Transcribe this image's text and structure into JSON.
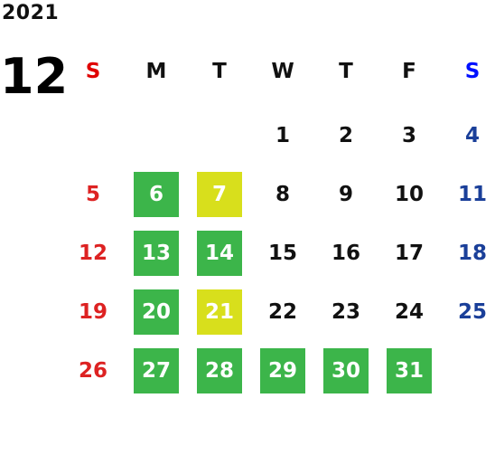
{
  "year": "2021",
  "month": "12",
  "weekdays": [
    "S",
    "M",
    "T",
    "W",
    "T",
    "F",
    "S"
  ],
  "weeks": [
    [
      {
        "day": "",
        "type": "sun"
      },
      {
        "day": "",
        "type": "normal"
      },
      {
        "day": "",
        "type": "normal"
      },
      {
        "day": "1",
        "type": "normal"
      },
      {
        "day": "2",
        "type": "normal"
      },
      {
        "day": "3",
        "type": "normal"
      },
      {
        "day": "4",
        "type": "sat"
      }
    ],
    [
      {
        "day": "5",
        "type": "sun"
      },
      {
        "day": "6",
        "type": "green"
      },
      {
        "day": "7",
        "type": "yellow"
      },
      {
        "day": "8",
        "type": "normal"
      },
      {
        "day": "9",
        "type": "normal"
      },
      {
        "day": "10",
        "type": "normal"
      },
      {
        "day": "11",
        "type": "sat"
      }
    ],
    [
      {
        "day": "12",
        "type": "sun"
      },
      {
        "day": "13",
        "type": "green"
      },
      {
        "day": "14",
        "type": "green"
      },
      {
        "day": "15",
        "type": "normal"
      },
      {
        "day": "16",
        "type": "normal"
      },
      {
        "day": "17",
        "type": "normal"
      },
      {
        "day": "18",
        "type": "sat"
      }
    ],
    [
      {
        "day": "19",
        "type": "sun"
      },
      {
        "day": "20",
        "type": "green"
      },
      {
        "day": "21",
        "type": "yellow"
      },
      {
        "day": "22",
        "type": "normal"
      },
      {
        "day": "23",
        "type": "normal"
      },
      {
        "day": "24",
        "type": "normal"
      },
      {
        "day": "25",
        "type": "sat"
      }
    ],
    [
      {
        "day": "26",
        "type": "sun"
      },
      {
        "day": "27",
        "type": "green"
      },
      {
        "day": "28",
        "type": "green"
      },
      {
        "day": "29",
        "type": "green"
      },
      {
        "day": "30",
        "type": "green"
      },
      {
        "day": "31",
        "type": "green"
      },
      {
        "day": "",
        "type": "sat"
      }
    ]
  ],
  "colors": {
    "highlight_green": "#3cb54a",
    "highlight_yellow": "#d8df1c",
    "sunday_red": "#dd2222",
    "saturday_blue": "#1a3f99"
  }
}
